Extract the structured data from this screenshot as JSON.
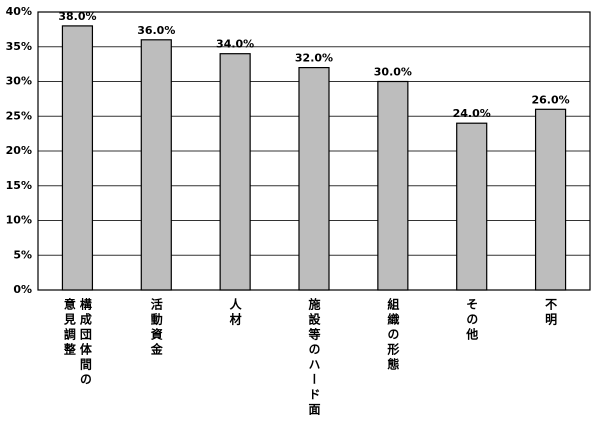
{
  "chart_data": {
    "type": "bar",
    "categories": [
      "構成団体間の意見調整",
      "活動資金",
      "人材",
      "施設等のハード面",
      "組織の形態",
      "その他",
      "不明"
    ],
    "values": [
      38,
      36,
      34,
      32,
      30,
      24,
      26
    ],
    "value_labels": [
      "38.0%",
      "36.0%",
      "34.0%",
      "32.0%",
      "30.0%",
      "24.0%",
      "26.0%"
    ],
    "color": "#bdbdbd",
    "ylim": [
      0,
      40
    ],
    "yticks": [
      {
        "value": 0,
        "label": "0%"
      },
      {
        "value": 5,
        "label": "5%"
      },
      {
        "value": 10,
        "label": "10%"
      },
      {
        "value": 15,
        "label": "15%"
      },
      {
        "value": 20,
        "label": "20%"
      },
      {
        "value": 25,
        "label": "25%"
      },
      {
        "value": 30,
        "label": "30%"
      },
      {
        "value": 35,
        "label": "35%"
      },
      {
        "value": 40,
        "label": "40%"
      }
    ],
    "grid": true
  }
}
